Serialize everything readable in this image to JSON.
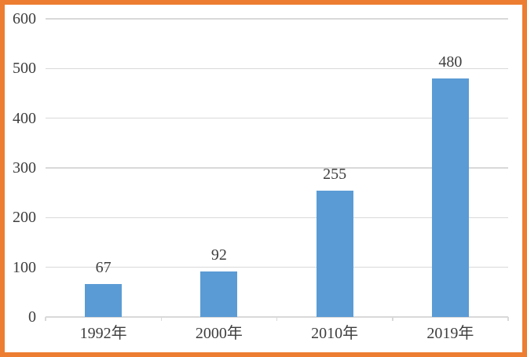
{
  "colors": {
    "frame_border": "#ED7D31",
    "bar_fill": "#5B9BD5",
    "gridline": "#D9D9D9",
    "axis_text": "#3E3E3E",
    "background": "#FFFFFF"
  },
  "chart_data": {
    "type": "bar",
    "categories": [
      "1992年",
      "2000年",
      "2010年",
      "2019年"
    ],
    "values": [
      67,
      92,
      255,
      480
    ],
    "value_labels": [
      "67",
      "92",
      "255",
      "480"
    ],
    "title": "",
    "subtitle": "",
    "xlabel": "",
    "ylabel": "",
    "ylim": [
      0,
      600
    ],
    "yticks": [
      0,
      100,
      200,
      300,
      400,
      500,
      600
    ],
    "grid": true,
    "legend": false,
    "value_labels_shown": true
  }
}
